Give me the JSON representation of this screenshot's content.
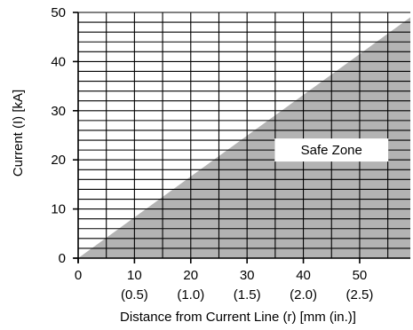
{
  "chart_data": {
    "type": "area",
    "title": "",
    "xlabel": "Distance from Current Line (r) [mm (in.)]",
    "ylabel": "Current (I) [kA]",
    "xlim": [
      0,
      59
    ],
    "ylim": [
      0,
      50
    ],
    "x_ticks": [
      0,
      10,
      20,
      30,
      40,
      50
    ],
    "x_tick_labels": [
      "0",
      "10",
      "20",
      "30",
      "40",
      "50"
    ],
    "x_secondary_tick_labels": [
      "",
      "(0.5)",
      "(1.0)",
      "(1.5)",
      "(2.0)",
      "(2.5)"
    ],
    "y_ticks": [
      0,
      10,
      20,
      30,
      40,
      50
    ],
    "y_tick_labels": [
      "0",
      "10",
      "20",
      "30",
      "40",
      "50"
    ],
    "grid": true,
    "grid_x_step": 5,
    "grid_y_step": 2,
    "series": [
      {
        "x": [
          0,
          59
        ],
        "y": [
          0,
          49
        ]
      }
    ],
    "region_label": "Safe Zone",
    "region_label_at": {
      "x": 45,
      "y": 22
    },
    "colors": {
      "shaded": "#b3b3b3",
      "grid": "#000000",
      "background": "#ffffff"
    }
  }
}
